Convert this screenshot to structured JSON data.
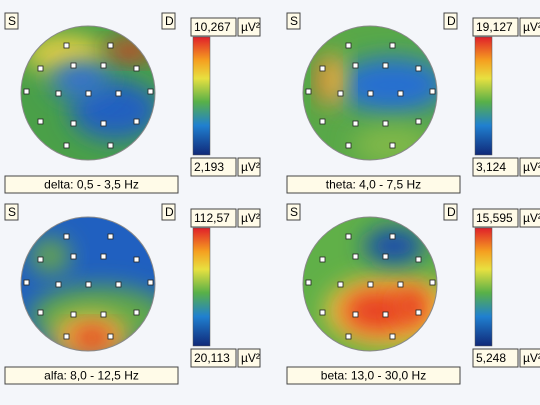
{
  "unit": "µV²",
  "panels": [
    {
      "left": "S",
      "right": "D",
      "max": "10,267",
      "min": "2,193",
      "label": "delta: 0,5 - 3,5 Hz"
    },
    {
      "left": "S",
      "right": "D",
      "max": "19,127",
      "min": "3,124",
      "label": "theta: 4,0 - 7,5 Hz"
    },
    {
      "left": "S",
      "right": "D",
      "max": "112,57",
      "min": "20,113",
      "label": "alfa: 8,0 - 12,5 Hz"
    },
    {
      "left": "S",
      "right": "D",
      "max": "15,595",
      "min": "5,248",
      "label": "beta: 13,0 - 30,0 Hz"
    }
  ]
}
